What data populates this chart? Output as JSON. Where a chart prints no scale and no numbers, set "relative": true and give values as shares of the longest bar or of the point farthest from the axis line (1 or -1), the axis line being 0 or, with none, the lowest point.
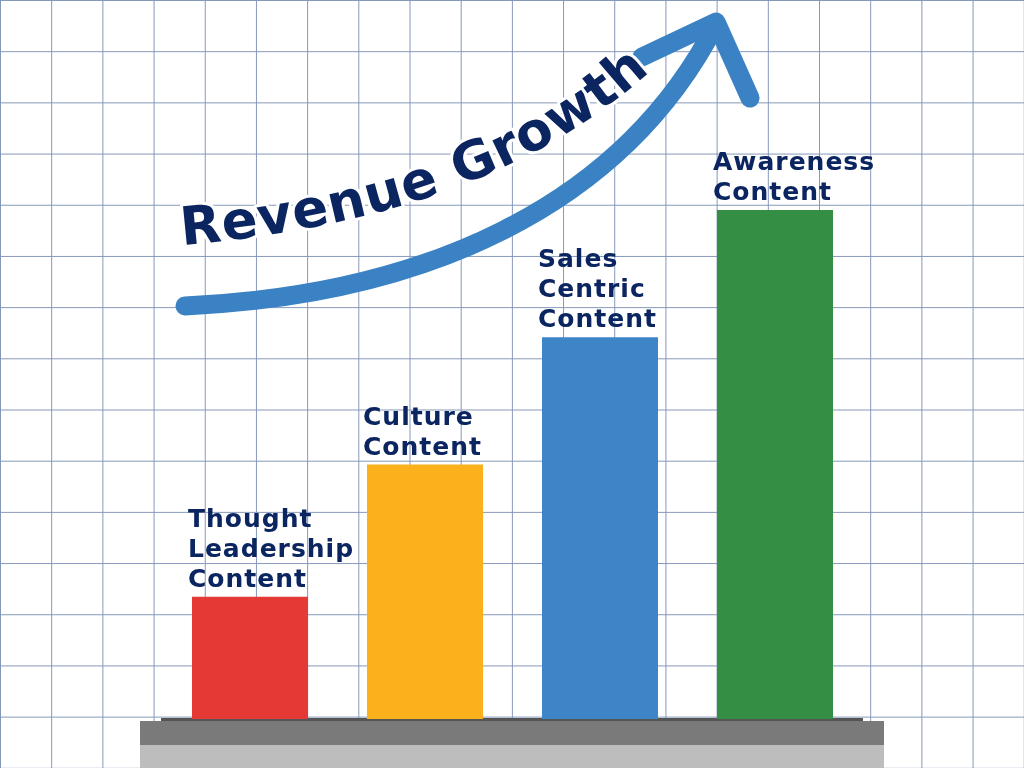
{
  "chart_data": {
    "type": "bar",
    "title": "Revenue Growth",
    "categories": [
      "Thought Leadership Content",
      "Culture Content",
      "Sales Centric Content",
      "Awareness Content"
    ],
    "values": [
      0.24,
      0.5,
      0.75,
      1
    ],
    "colors": [
      "#e53935",
      "#fbb11b",
      "#3d85c6",
      "#348f44"
    ],
    "relative": true
  }
}
